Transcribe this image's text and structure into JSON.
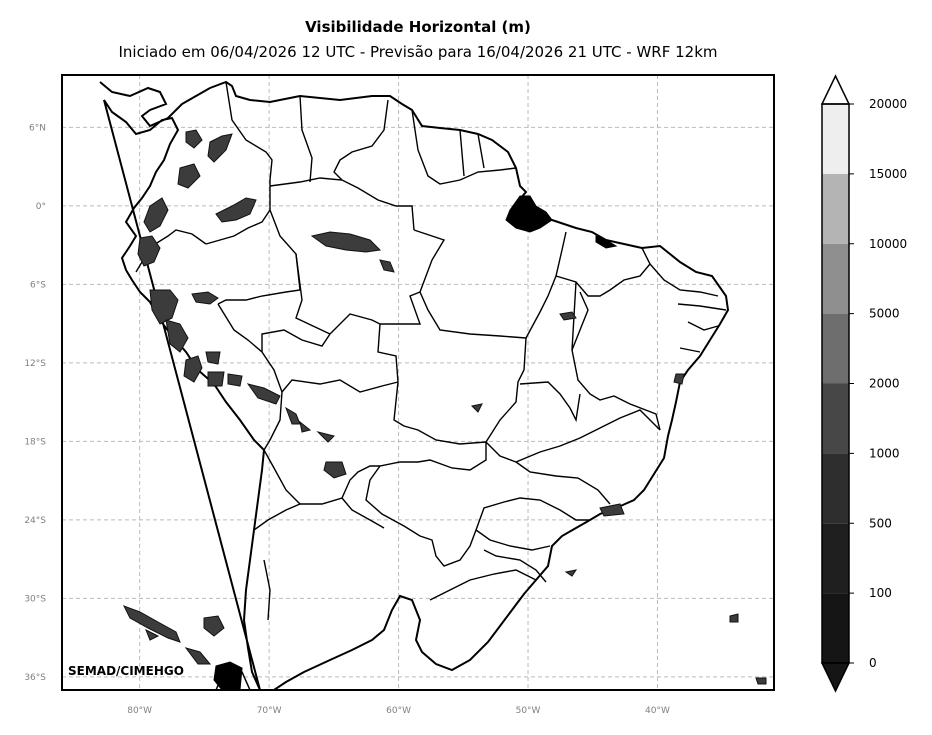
{
  "title": "Visibilidade Horizontal (m)",
  "subtitle": "Iniciado em 06/04/2026 12 UTC - Previsão para 16/04/2026 21 UTC - WRF 12km",
  "credit": "SEMAD/CIMEHGO",
  "map": {
    "lon_range": [
      -86,
      -31
    ],
    "lat_range": [
      -37,
      10
    ],
    "lat_ticks": [
      {
        "value": 6,
        "label": "6°N"
      },
      {
        "value": 0,
        "label": "0°"
      },
      {
        "value": -6,
        "label": "6°S"
      },
      {
        "value": -12,
        "label": "12°S"
      },
      {
        "value": -18,
        "label": "18°S"
      },
      {
        "value": -24,
        "label": "24°S"
      },
      {
        "value": -30,
        "label": "30°S"
      },
      {
        "value": -36,
        "label": "36°S"
      }
    ],
    "lon_ticks": [
      {
        "value": -80,
        "label": "80°W"
      },
      {
        "value": -70,
        "label": "70°W"
      },
      {
        "value": -60,
        "label": "60°W"
      },
      {
        "value": -50,
        "label": "50°W"
      },
      {
        "value": -40,
        "label": "40°W"
      }
    ],
    "gridlines": true
  },
  "colorbar": {
    "levels": [
      {
        "label": "0",
        "color": "#151515"
      },
      {
        "label": "100",
        "color": "#1f1f1f"
      },
      {
        "label": "500",
        "color": "#2e2e2e"
      },
      {
        "label": "1000",
        "color": "#474747"
      },
      {
        "label": "2000",
        "color": "#6e6e6e"
      },
      {
        "label": "5000",
        "color": "#8f8f8f"
      },
      {
        "label": "10000",
        "color": "#b4b4b4"
      },
      {
        "label": "15000",
        "color": "#eeeeee"
      },
      {
        "label": "20000",
        "color": "#ffffff"
      }
    ],
    "extend": "both"
  }
}
